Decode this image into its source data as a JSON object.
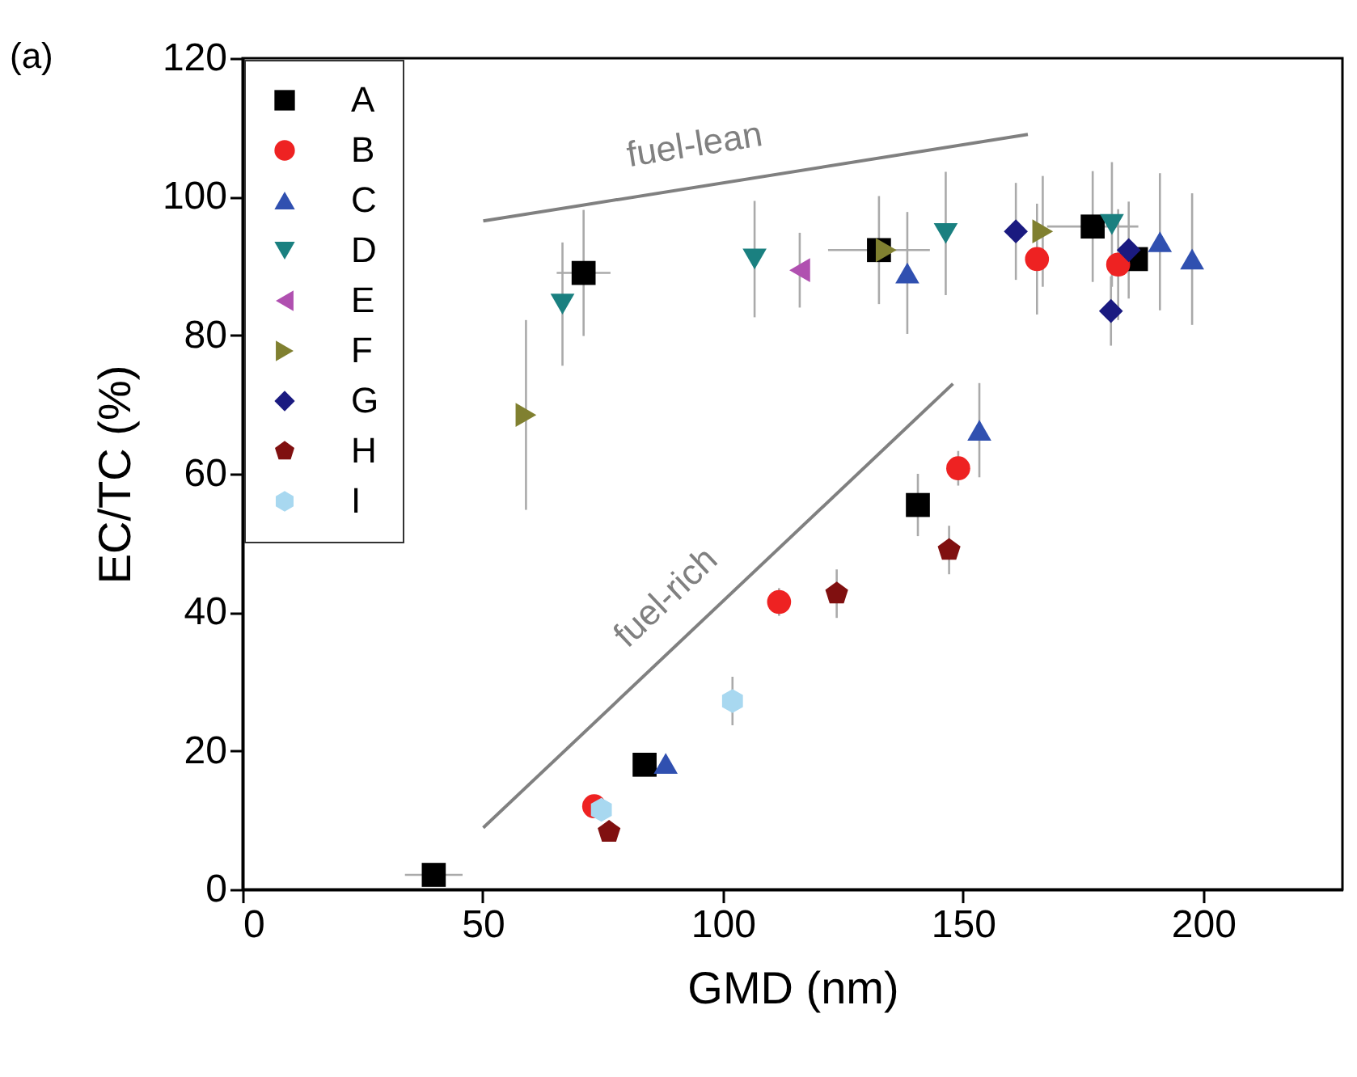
{
  "chart_data": {
    "type": "scatter",
    "title": "(a)",
    "xlabel": "GMD (nm)",
    "ylabel": "EC/TC (%)",
    "xlim": [
      0,
      229
    ],
    "ylim": [
      0,
      120
    ],
    "xticks": [
      0,
      50,
      100,
      150,
      200
    ],
    "yticks": [
      0,
      20,
      40,
      60,
      80,
      100,
      120
    ],
    "grid": false,
    "legend": "top left",
    "series": [
      {
        "name": "A",
        "color": "#000000",
        "marker": "square",
        "x": [
          39.8,
          71,
          83.7,
          132.5,
          140.6,
          177,
          186
        ],
        "values": [
          2.1,
          89,
          18,
          92.3,
          55.5,
          95.7,
          91
        ],
        "errors": [
          null,
          9.1,
          null,
          7.8,
          4.5,
          8,
          null
        ],
        "xerrors": [
          6,
          5.6,
          null,
          10.6,
          null,
          9.5,
          null
        ]
      },
      {
        "name": "B",
        "color": "#ee2222",
        "marker": "circle",
        "x": [
          73.2,
          111.7,
          149,
          165.4,
          182.3
        ],
        "values": [
          12,
          41.5,
          60.8,
          91,
          90.2
        ],
        "errors": [
          null,
          2,
          2.5,
          8,
          8
        ]
      },
      {
        "name": "C",
        "color": "#3050b0",
        "marker": "triangle-up",
        "x": [
          88.1,
          138.4,
          153.4,
          191,
          197.7
        ],
        "values": [
          18.2,
          89,
          66.3,
          93.5,
          91
        ],
        "errors": [
          null,
          8.8,
          6.8,
          9.9,
          9.5
        ]
      },
      {
        "name": "D",
        "color": "#1a8080",
        "marker": "triangle-down",
        "x": [
          66.6,
          106.6,
          146.4,
          181
        ],
        "values": [
          84.5,
          91,
          94.7,
          96
        ],
        "errors": [
          8.9,
          8.4,
          8.9,
          9
        ]
      },
      {
        "name": "E",
        "color": "#b050b0",
        "marker": "triangle-left",
        "x": [
          116
        ],
        "values": [
          89.4
        ],
        "errors": [
          5.4
        ]
      },
      {
        "name": "F",
        "color": "#808030",
        "marker": "triangle-right",
        "x": [
          59,
          134,
          166.6
        ],
        "values": [
          68.5,
          92.3,
          95
        ],
        "errors": [
          13.7,
          null,
          8
        ]
      },
      {
        "name": "G",
        "color": "#1a1a80",
        "marker": "diamond",
        "x": [
          161,
          180.8,
          184.5
        ],
        "values": [
          95,
          83.5,
          92.3
        ],
        "errors": [
          7,
          5,
          7
        ]
      },
      {
        "name": "H",
        "color": "#801010",
        "x": [
          76.3,
          123.7,
          147.1
        ],
        "values": [
          8.3,
          42.7,
          49
        ],
        "errors": [
          null,
          3.5,
          3.5
        ]
      },
      {
        "name": "I",
        "color": "#a8d8f0",
        "x": [
          74.7,
          102
        ],
        "values": [
          11.5,
          27.2
        ],
        "errors": [
          null,
          3.5
        ]
      },
      {
        "name": "fuel-lean",
        "type": "line",
        "color": "#808080",
        "x": [
          50.1,
          163.5
        ],
        "values": [
          96.5,
          109
        ]
      },
      {
        "name": "fuel-rich",
        "type": "line",
        "color": "#808080",
        "x": [
          50.1,
          147.9
        ],
        "values": [
          8.9,
          73
        ]
      }
    ]
  }
}
